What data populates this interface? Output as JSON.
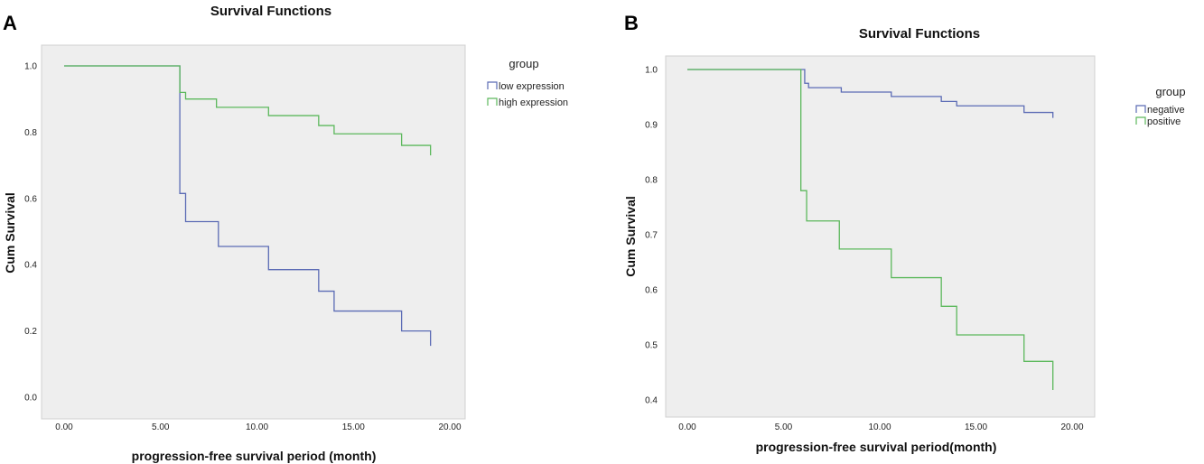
{
  "chart_data": [
    {
      "type": "line",
      "panel": "A",
      "title": "Survival Functions",
      "xlabel": "progression-free survival period (month)",
      "ylabel": "Cum Survival",
      "xlim": [
        0,
        20
      ],
      "ylim": [
        0,
        1
      ],
      "xticks": [
        0,
        5,
        10,
        15,
        20
      ],
      "xtick_labels": [
        "0.00",
        "5.00",
        "10.00",
        "15.00",
        "20.00"
      ],
      "yticks": [
        0.0,
        0.2,
        0.4,
        0.6,
        0.8,
        1.0
      ],
      "ytick_labels": [
        "0.0",
        "0.2",
        "0.4",
        "0.6",
        "0.8",
        "1.0"
      ],
      "legend_title": "group",
      "legend_position": "right",
      "series": [
        {
          "name": "low expression",
          "color": "#5b6bb5",
          "steps": [
            [
              0,
              1.0
            ],
            [
              6.0,
              0.615
            ],
            [
              6.3,
              0.53
            ],
            [
              8.0,
              0.455
            ],
            [
              10.6,
              0.385
            ],
            [
              13.2,
              0.32
            ],
            [
              14.0,
              0.26
            ],
            [
              17.5,
              0.2
            ],
            [
              19.0,
              0.155
            ]
          ]
        },
        {
          "name": "high expression",
          "color": "#5cb85c",
          "steps": [
            [
              0,
              1.0
            ],
            [
              6.0,
              0.92
            ],
            [
              6.3,
              0.9
            ],
            [
              7.9,
              0.875
            ],
            [
              10.6,
              0.85
            ],
            [
              13.2,
              0.82
            ],
            [
              14.0,
              0.795
            ],
            [
              17.5,
              0.76
            ],
            [
              19.0,
              0.73
            ]
          ]
        }
      ]
    },
    {
      "type": "line",
      "panel": "B",
      "title": "Survival Functions",
      "xlabel": "progression-free survival period(month)",
      "ylabel": "Cum Survival",
      "xlim": [
        0,
        20
      ],
      "ylim": [
        0.4,
        1.0
      ],
      "xticks": [
        0,
        5,
        10,
        15,
        20
      ],
      "xtick_labels": [
        "0.00",
        "5.00",
        "10.00",
        "15.00",
        "20.00"
      ],
      "yticks": [
        0.4,
        0.5,
        0.6,
        0.7,
        0.8,
        0.9,
        1.0
      ],
      "ytick_labels": [
        "0.4",
        "0.5",
        "0.6",
        "0.7",
        "0.8",
        "0.9",
        "1.0"
      ],
      "legend_title": "group",
      "legend_position": "right",
      "series": [
        {
          "name": "negative",
          "color": "#5b6bb5",
          "steps": [
            [
              0,
              1.0
            ],
            [
              6.1,
              0.975
            ],
            [
              6.3,
              0.967
            ],
            [
              8.0,
              0.959
            ],
            [
              10.6,
              0.951
            ],
            [
              13.2,
              0.942
            ],
            [
              14.0,
              0.934
            ],
            [
              17.5,
              0.922
            ],
            [
              19.0,
              0.912
            ]
          ]
        },
        {
          "name": "positive",
          "color": "#5cb85c",
          "steps": [
            [
              0,
              1.0
            ],
            [
              5.9,
              0.78
            ],
            [
              6.2,
              0.725
            ],
            [
              7.9,
              0.674
            ],
            [
              10.6,
              0.622
            ],
            [
              13.2,
              0.57
            ],
            [
              14.0,
              0.518
            ],
            [
              17.5,
              0.47
            ],
            [
              19.0,
              0.418
            ]
          ]
        }
      ]
    }
  ]
}
